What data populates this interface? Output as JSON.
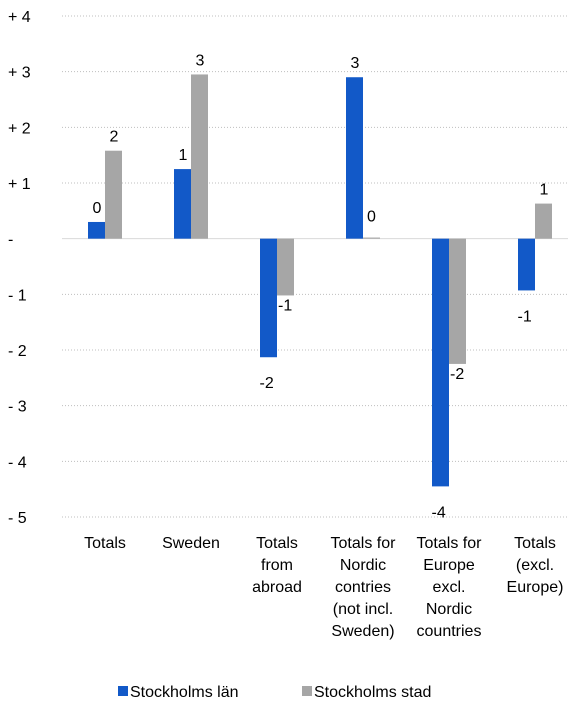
{
  "chart_data": {
    "type": "bar",
    "title": "",
    "xlabel": "",
    "ylabel": "",
    "ylim": [
      -5,
      4
    ],
    "grid": true,
    "legend_position": "bottom",
    "y_ticks": [
      {
        "value": 4,
        "label": "+ 4"
      },
      {
        "value": 3,
        "label": "+ 3"
      },
      {
        "value": 2,
        "label": "+ 2"
      },
      {
        "value": 1,
        "label": "+ 1"
      },
      {
        "value": 0,
        "label": "-"
      },
      {
        "value": -1,
        "label": "- 1"
      },
      {
        "value": -2,
        "label": "- 2"
      },
      {
        "value": -3,
        "label": "- 3"
      },
      {
        "value": -4,
        "label": "- 4"
      },
      {
        "value": -5,
        "label": "- 5"
      }
    ],
    "categories": [
      [
        "Totals"
      ],
      [
        "Sweden"
      ],
      [
        "Totals",
        "from",
        "abroad"
      ],
      [
        "Totals for",
        "Nordic",
        "contries",
        "(not incl.",
        "Sweden)"
      ],
      [
        "Totals for",
        "Europe",
        "excl.",
        "Nordic",
        "countries"
      ],
      [
        "Totals",
        "(excl.",
        "Europe)"
      ]
    ],
    "series": [
      {
        "name": "Stockholms län",
        "color": "#1259c8",
        "values": [
          0.3,
          1.25,
          -2.13,
          2.9,
          -4.45,
          -0.93
        ],
        "labels": [
          "0",
          "1",
          "-2",
          "3",
          "-4",
          "-1"
        ]
      },
      {
        "name": "Stockholms stad",
        "color": "#a6a6a6",
        "values": [
          1.58,
          2.95,
          -1.02,
          0.02,
          -2.25,
          0.63
        ],
        "labels": [
          "2",
          "3",
          "-1",
          "0",
          "-2",
          "1"
        ]
      }
    ]
  }
}
